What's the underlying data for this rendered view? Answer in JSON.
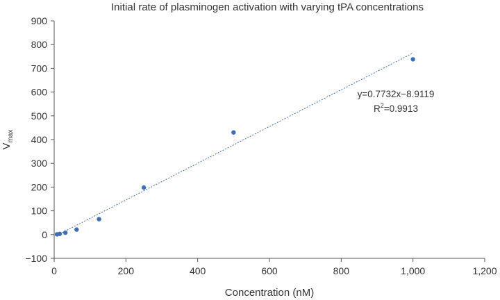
{
  "chart_data": {
    "type": "scatter",
    "title": "Initial rate of plasminogen activation with varying tPA concentrations",
    "xlabel": "Concentration (nM)",
    "ylabel_main": "V",
    "ylabel_sub": "max",
    "xlim": [
      0,
      1200
    ],
    "ylim": [
      -100,
      900
    ],
    "x_ticks": [
      0,
      200,
      400,
      600,
      800,
      1000,
      1200
    ],
    "x_tick_labels": [
      "0",
      "200",
      "400",
      "600",
      "800",
      "1,000",
      "1,200"
    ],
    "y_ticks": [
      -100,
      0,
      100,
      200,
      300,
      400,
      500,
      600,
      700,
      800,
      900
    ],
    "y_tick_labels": [
      "−100",
      "0",
      "100",
      "200",
      "300",
      "400",
      "500",
      "600",
      "700",
      "800",
      "900"
    ],
    "series": [
      {
        "name": "Vmax",
        "x": [
          7.8,
          15.6,
          31.25,
          62.5,
          125,
          250,
          500,
          1000
        ],
        "y": [
          1,
          3,
          8,
          21,
          65,
          198,
          430,
          738
        ]
      }
    ],
    "trendline": {
      "slope": 0.7732,
      "intercept": -8.9119,
      "x_range": [
        7.8,
        1000
      ]
    },
    "annotations": {
      "equation": "y=0.7732x−8.9119",
      "r2_prefix": "R",
      "r2_sup": "2",
      "r2_suffix": "=0.9913"
    },
    "colors": {
      "points": "#3f6eb5",
      "trendline": "#3f6eb5",
      "axis": "#555555"
    }
  }
}
